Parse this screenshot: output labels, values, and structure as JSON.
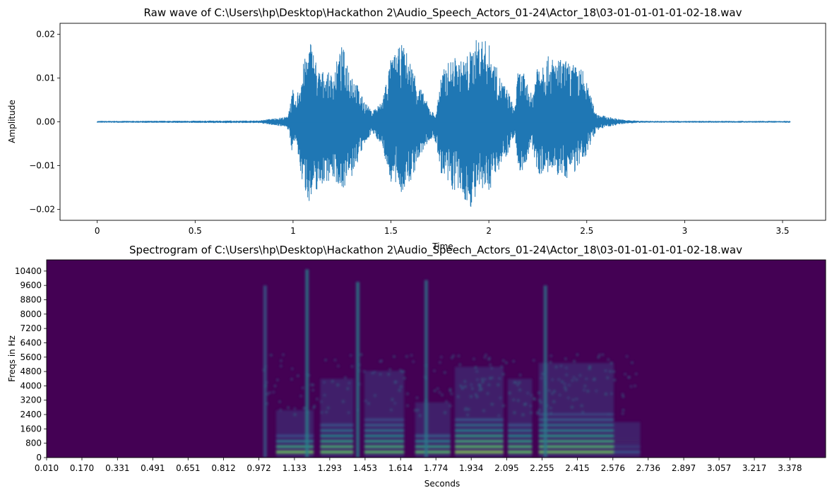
{
  "chart_data": [
    {
      "type": "line",
      "title": "Raw wave of C:\\Users\\hp\\Desktop\\Hackathon 2\\Audio_Speech_Actors_01-24\\Actor_18\\03-01-01-01-01-02-18.wav",
      "xlabel": "Time",
      "ylabel": "Amplitude",
      "xlim": [
        -0.19,
        3.72
      ],
      "ylim": [
        -0.0225,
        0.0225
      ],
      "x_ticks": [
        "0",
        "0.5",
        "1",
        "1.5",
        "2",
        "2.5",
        "3",
        "3.5"
      ],
      "x_tick_values": [
        0,
        0.5,
        1,
        1.5,
        2,
        2.5,
        3,
        3.5
      ],
      "y_ticks": [
        "0.02",
        "0.01",
        "0.00",
        "−0.01",
        "−0.02"
      ],
      "y_tick_values": [
        0.02,
        0.01,
        0.0,
        -0.01,
        -0.02
      ],
      "line_color": "#1f77b4",
      "duration": 3.54,
      "envelope": {
        "t": [
          0.0,
          0.83,
          0.87,
          0.97,
          1.0,
          1.01,
          1.05,
          1.09,
          1.13,
          1.2,
          1.25,
          1.3,
          1.35,
          1.4,
          1.45,
          1.5,
          1.56,
          1.6,
          1.65,
          1.7,
          1.73,
          1.75,
          1.78,
          1.82,
          1.86,
          1.9,
          1.95,
          2.0,
          2.05,
          2.1,
          2.13,
          2.15,
          2.18,
          2.22,
          2.25,
          2.3,
          2.4,
          2.48,
          2.52,
          2.55,
          2.6,
          2.7,
          2.8,
          3.54
        ],
        "upper": [
          0.0002,
          0.0003,
          0.0006,
          0.0012,
          0.0075,
          0.004,
          0.013,
          0.019,
          0.012,
          0.011,
          0.0175,
          0.012,
          0.006,
          0.0025,
          0.0045,
          0.0145,
          0.018,
          0.014,
          0.008,
          0.003,
          0.0015,
          0.01,
          0.013,
          0.015,
          0.014,
          0.016,
          0.02,
          0.018,
          0.011,
          0.007,
          0.003,
          0.012,
          0.011,
          0.006,
          0.015,
          0.015,
          0.014,
          0.012,
          0.006,
          0.002,
          0.0012,
          0.0004,
          0.0002,
          0.0002
        ],
        "lower": [
          -0.0002,
          -0.0003,
          -0.0006,
          -0.0012,
          -0.008,
          -0.004,
          -0.015,
          -0.019,
          -0.015,
          -0.013,
          -0.0155,
          -0.013,
          -0.007,
          -0.0025,
          -0.005,
          -0.014,
          -0.0165,
          -0.014,
          -0.008,
          -0.004,
          -0.005,
          -0.011,
          -0.015,
          -0.016,
          -0.017,
          -0.02,
          -0.017,
          -0.016,
          -0.011,
          -0.007,
          -0.003,
          -0.012,
          -0.011,
          -0.006,
          -0.012,
          -0.012,
          -0.013,
          -0.01,
          -0.005,
          -0.002,
          -0.0012,
          -0.0004,
          -0.0002,
          -0.0002
        ]
      }
    },
    {
      "type": "heatmap",
      "title": "Spectrogram of C:\\Users\\hp\\Desktop\\Hackathon 2\\Audio_Speech_Actors_01-24\\Actor_18\\03-01-01-01-01-02-18.wav",
      "xlabel": "Seconds",
      "ylabel": "Freqs in Hz",
      "xlim": [
        0.01,
        3.54
      ],
      "ylim": [
        0,
        11025
      ],
      "x_ticks": [
        "0.010",
        "0.170",
        "0.331",
        "0.491",
        "0.651",
        "0.812",
        "0.972",
        "1.133",
        "1.293",
        "1.453",
        "1.614",
        "1.774",
        "1.934",
        "2.095",
        "2.255",
        "2.415",
        "2.576",
        "2.736",
        "2.897",
        "3.057",
        "3.217",
        "3.378"
      ],
      "x_tick_values": [
        0.01,
        0.17,
        0.331,
        0.491,
        0.651,
        0.812,
        0.972,
        1.133,
        1.293,
        1.453,
        1.614,
        1.774,
        1.934,
        2.095,
        2.255,
        2.415,
        2.576,
        2.736,
        2.897,
        3.057,
        3.217,
        3.378
      ],
      "y_ticks": [
        "10400",
        "9600",
        "8800",
        "8000",
        "7200",
        "6400",
        "5600",
        "4800",
        "4000",
        "3200",
        "2400",
        "1600",
        "800",
        "0"
      ],
      "y_tick_values": [
        10400,
        9600,
        8800,
        8000,
        7200,
        6400,
        5600,
        4800,
        4000,
        3200,
        2400,
        1600,
        800,
        0
      ],
      "colormap": "viridis",
      "background_color": "#440154",
      "segments": [
        {
          "t0": 1.05,
          "t1": 1.22,
          "level": 0.95,
          "fmax": 1200
        },
        {
          "t0": 1.25,
          "t1": 1.4,
          "level": 0.85,
          "fmax": 2000
        },
        {
          "t0": 1.45,
          "t1": 1.63,
          "level": 0.8,
          "fmax": 2200
        },
        {
          "t0": 1.68,
          "t1": 1.84,
          "level": 0.85,
          "fmax": 1400
        },
        {
          "t0": 1.86,
          "t1": 2.08,
          "level": 0.9,
          "fmax": 2300
        },
        {
          "t0": 2.1,
          "t1": 2.21,
          "level": 0.85,
          "fmax": 2000
        },
        {
          "t0": 2.24,
          "t1": 2.58,
          "level": 0.85,
          "fmax": 2400
        },
        {
          "t0": 2.58,
          "t1": 2.7,
          "level": 0.35,
          "fmax": 900
        }
      ],
      "transients": [
        {
          "t": 1.0,
          "fmax": 9600,
          "level": 0.3
        },
        {
          "t": 1.19,
          "fmax": 10500,
          "level": 0.45
        },
        {
          "t": 1.42,
          "fmax": 9800,
          "level": 0.45
        },
        {
          "t": 1.73,
          "fmax": 9900,
          "level": 0.4
        },
        {
          "t": 2.27,
          "fmax": 9600,
          "level": 0.4
        }
      ]
    }
  ]
}
